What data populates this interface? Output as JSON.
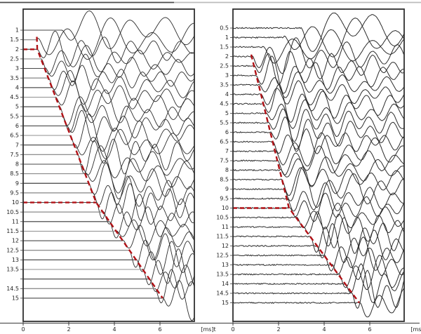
{
  "figure": {
    "description": "Two seismic trace waterfall panels with first-arrival pick lines",
    "colors": {
      "trace": "#2b2b2b",
      "flat_alt": "#8f8f8f",
      "flat_dark": "#474747",
      "pick_red": "#b11116",
      "frame": "#2f2f2f",
      "axis": "#3a3a3a",
      "label": "#1f1f1f",
      "top_border_left": "#4a4a4a",
      "top_border_right": "#bcbcbc"
    }
  },
  "chart_data": [
    {
      "type": "line",
      "subtype": "seismic_waterfall",
      "panel": "left",
      "xlabel_unit": "[ms]t",
      "x_tick_labels": [
        "0",
        "2",
        "4",
        "6"
      ],
      "x_tick_values": [
        0,
        2,
        4,
        6
      ],
      "x_range_ms": [
        0,
        7.5
      ],
      "depth_labels": [
        "1",
        "1.5",
        "2",
        "2.5",
        "3",
        "3.5",
        "4",
        "4.5",
        "5",
        "5.5",
        "6",
        "6.5",
        "7",
        "7.5",
        "8",
        "8.5",
        "9",
        "9.5",
        "10",
        "10.5",
        "11",
        "11.5",
        "12",
        "12.5",
        "13",
        "13.5",
        "",
        "14.5",
        "15"
      ],
      "depths": [
        1,
        1.5,
        2,
        2.5,
        3,
        3.5,
        4,
        4.5,
        5,
        5.5,
        6,
        6.5,
        7,
        7.5,
        8,
        8.5,
        9,
        9.5,
        10,
        10.5,
        11,
        11.5,
        12,
        12.5,
        13,
        13.5,
        14,
        14.5,
        15
      ],
      "first_arrival_ms": [
        1.7,
        0.6,
        0.62,
        0.78,
        0.94,
        1.1,
        1.27,
        1.43,
        1.59,
        1.75,
        1.91,
        2.07,
        2.23,
        2.4,
        2.56,
        2.72,
        2.88,
        3.04,
        3.2,
        3.49,
        3.78,
        4.07,
        4.36,
        4.65,
        4.94,
        5.23,
        5.52,
        5.81,
        6.1
      ],
      "pick_polyline_ms_depth": [
        [
          0.6,
          1.35
        ],
        [
          0.62,
          2
        ],
        [
          3.2,
          10
        ],
        [
          6.12,
          15
        ]
      ],
      "pick_horizontals": [
        {
          "depth": 2,
          "from_ms": 0,
          "to_ms": 0.62
        },
        {
          "depth": 10,
          "from_ms": 0,
          "to_ms": 3.2
        }
      ]
    },
    {
      "type": "line",
      "subtype": "seismic_waterfall",
      "panel": "right",
      "xlabel_unit": "[ms]t",
      "x_tick_labels": [
        "0",
        "2",
        "4",
        "6"
      ],
      "x_tick_values": [
        0,
        2,
        4,
        6
      ],
      "x_range_ms": [
        0,
        7.5
      ],
      "depth_labels": [
        "0.5",
        "1",
        "1.5",
        "2",
        "2.5",
        "3",
        "3.5",
        "4",
        "4.5",
        "5",
        "5.5",
        "6",
        "6.5",
        "7",
        "7.5",
        "8",
        "8.5",
        "9",
        "9.5",
        "10",
        "10.5",
        "11",
        "11.5",
        "12",
        "12.5",
        "13",
        "13.5",
        "14",
        "14.5",
        "15"
      ],
      "depths": [
        0.5,
        1,
        1.5,
        2,
        2.5,
        3,
        3.5,
        4,
        4.5,
        5,
        5.5,
        6,
        6.5,
        7,
        7.5,
        8,
        8.5,
        9,
        9.5,
        10,
        10.5,
        11,
        11.5,
        12,
        12.5,
        13,
        13.5,
        14,
        14.5,
        15
      ],
      "first_arrival_ms": [
        3.0,
        2.2,
        1.3,
        0.8,
        0.9,
        1.01,
        1.11,
        1.21,
        1.32,
        1.42,
        1.53,
        1.63,
        1.74,
        1.84,
        1.94,
        2.05,
        2.15,
        2.25,
        2.36,
        2.46,
        2.77,
        3.08,
        3.39,
        3.69,
        4.0,
        4.31,
        4.62,
        4.92,
        5.23,
        5.54
      ],
      "pick_polyline_ms_depth": [
        [
          0.8,
          1.9
        ],
        [
          2.46,
          10
        ],
        [
          5.54,
          15
        ]
      ],
      "pick_horizontals": [
        {
          "depth": 10,
          "from_ms": 0,
          "to_ms": 2.46
        }
      ]
    }
  ]
}
